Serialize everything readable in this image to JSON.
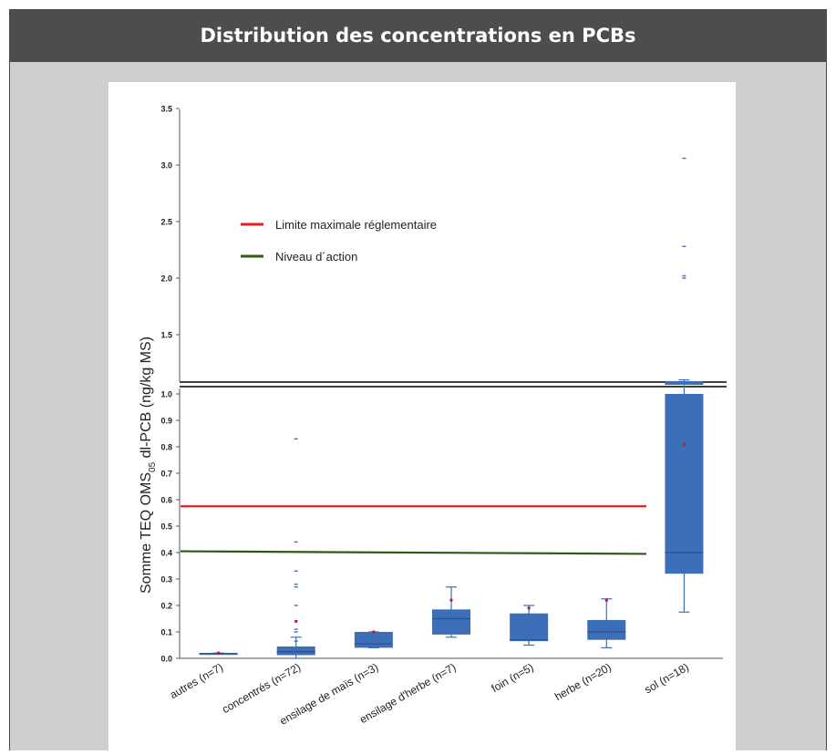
{
  "header": {
    "title": "Distribution des concentrations en PCBs"
  },
  "chart_data": {
    "type": "box",
    "title": "",
    "xlabel": "",
    "ylabel": {
      "before_sub": "Somme TEQ OMS",
      "subscript": "05",
      "after_sub": " dl-PCB (ng/kg MS)"
    },
    "y_axis": {
      "broken": true,
      "lower_range": [
        0,
        1.0
      ],
      "upper_range": [
        1.0,
        3.5
      ],
      "lower_ticks": [
        "0.0",
        "0.1",
        "0.2",
        "0.3",
        "0.4",
        "0.5",
        "0.6",
        "0.7",
        "0.8",
        "0.9",
        "1.0"
      ],
      "upper_ticks": [
        "1.5",
        "2.0",
        "2.5",
        "3.0",
        "3.5"
      ]
    },
    "categories": [
      "autres (n=7)",
      "concentrés (n=72)",
      "ensilage de maïs (n=3)",
      "ensilage d'herbe (n=7)",
      "foin (n=5)",
      "herbe (n=20)",
      "sol (n=18)"
    ],
    "boxes": [
      {
        "q1": 0.016,
        "median": 0.018,
        "q3": 0.02,
        "whisker_low": 0.016,
        "whisker_high": 0.02,
        "mean": 0.02,
        "outliers": []
      },
      {
        "q1": 0.012,
        "median": 0.025,
        "q3": 0.045,
        "whisker_low": 0.0,
        "whisker_high": 0.08,
        "mean": 0.14,
        "outliers": [
          0.065,
          0.1,
          0.11,
          0.2,
          0.27,
          0.28,
          0.33,
          0.44,
          0.83
        ]
      },
      {
        "q1": 0.04,
        "median": 0.055,
        "q3": 0.1,
        "whisker_low": 0.04,
        "whisker_high": 0.1,
        "mean": 0.1,
        "outliers": []
      },
      {
        "q1": 0.09,
        "median": 0.15,
        "q3": 0.185,
        "whisker_low": 0.08,
        "whisker_high": 0.27,
        "mean": 0.22,
        "outliers": []
      },
      {
        "q1": 0.065,
        "median": 0.07,
        "q3": 0.17,
        "whisker_low": 0.05,
        "whisker_high": 0.2,
        "mean": 0.19,
        "outliers": []
      },
      {
        "q1": 0.07,
        "median": 0.1,
        "q3": 0.145,
        "whisker_low": 0.04,
        "whisker_high": 0.225,
        "mean": 0.22,
        "outliers": []
      },
      {
        "q1": 0.32,
        "median": 0.4,
        "q3": 1.1,
        "whisker_low": 0.175,
        "whisker_high": 1.1,
        "mean": 0.81,
        "outliers": [
          2.0,
          2.02,
          2.28,
          3.06
        ]
      }
    ],
    "reference_lines": [
      {
        "name": "Limite maximale réglementaire",
        "color": "#e0201c",
        "y_start": 0.575,
        "y_end": 0.575
      },
      {
        "name": "Niveau d´action",
        "color": "#2f5a16",
        "y_start": 0.405,
        "y_end": 0.395
      }
    ],
    "legend": {
      "position": "upper-left"
    },
    "box_color": "#3d6fb8",
    "mean_marker_color": "#cc1030",
    "grid": false
  }
}
